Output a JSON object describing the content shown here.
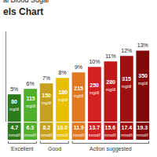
{
  "chart_data": {
    "type": "bar",
    "title": "els Chart",
    "subtitle": "al Blood Sugar",
    "categories": [
      "4.7",
      "6.3",
      "8.2",
      "10.0",
      "11.9",
      "13.7",
      "15.6",
      "17.4",
      "19.3"
    ],
    "category_unit": "mmol/l",
    "values": [
      5,
      6,
      7,
      8,
      9,
      10,
      11,
      12,
      13
    ],
    "value_labels": [
      "5%",
      "6%",
      "7%",
      "8%",
      "9%",
      "10%",
      "11%",
      "12%",
      "13%"
    ],
    "data_labels": true,
    "mg_dl": [
      80,
      115,
      150,
      180,
      215,
      250,
      280,
      315,
      350
    ],
    "mg_dl_unit": "mg/dl",
    "colors": [
      "#2d7a1e",
      "#50b02a",
      "#c8a020",
      "#e8c000",
      "#e07820",
      "#d42020",
      "#c01818",
      "#a01010",
      "#800808"
    ],
    "groups": [
      {
        "label": "Excellent",
        "first": "4.7",
        "last": "6.3"
      },
      {
        "label": "Good",
        "first": "8.2",
        "last": "10.0"
      },
      {
        "label": "Action suggested",
        "first": "11.9",
        "last": "19.3"
      }
    ],
    "ylim": [
      0,
      16.5
    ],
    "yticks": [],
    "tick_labels": false,
    "grid": false
  }
}
